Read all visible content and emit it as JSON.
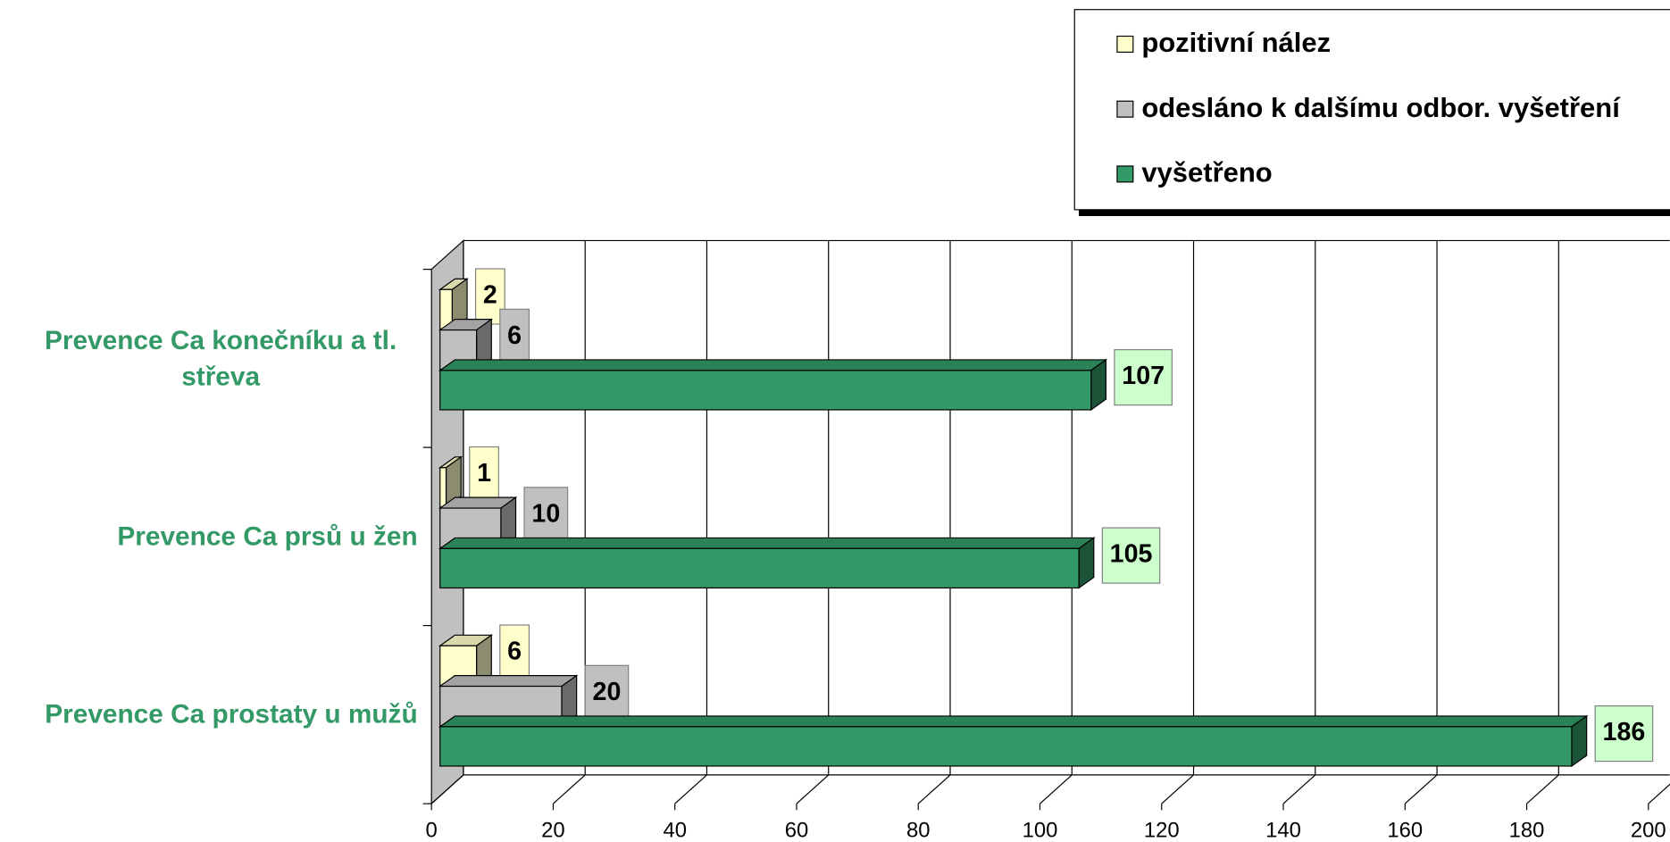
{
  "chart_data": {
    "type": "bar3d_horizontal",
    "categories": [
      "Prevence Ca konečníku a tl. střeva",
      "Prevence Ca prsů u žen",
      "Prevence Ca prostaty u mužů"
    ],
    "series": [
      {
        "name": "pozitivní nález",
        "color": "#ffffcc",
        "label_color": "#ffffcc",
        "values": [
          2,
          1,
          6
        ]
      },
      {
        "name": "odesláno k dalšímu odbor. vyšetření",
        "color": "#c0c0c0",
        "label_color": "#c0c0c0",
        "values": [
          6,
          10,
          20
        ]
      },
      {
        "name": "vyšetřeno",
        "color": "#339966",
        "label_color": "#ccffcc",
        "values": [
          107,
          105,
          186
        ]
      }
    ],
    "xlim": [
      0,
      200
    ],
    "xticks": [
      0,
      20,
      40,
      60,
      80,
      100,
      120,
      140,
      160,
      180,
      200
    ],
    "grid": true,
    "legend": "top-right"
  }
}
